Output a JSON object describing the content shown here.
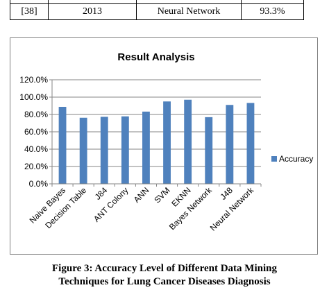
{
  "table": {
    "rows": [
      {
        "ref": "",
        "year": "",
        "technique": "",
        "accuracy": ""
      },
      {
        "ref": "[38]",
        "year": "2013",
        "technique": "Neural Network",
        "accuracy": "93.3%"
      }
    ]
  },
  "chart_data": {
    "type": "bar",
    "title": "Result Analysis",
    "categories": [
      "Naive Bayes",
      "Decision Table",
      "J84",
      "ANT Colony",
      "ANN",
      "SVM",
      "EKNN",
      "Bayes Network",
      "J48",
      "Neural Network"
    ],
    "series": [
      {
        "name": "Accuracy",
        "color": "#4f81bd",
        "values": [
          88.8,
          76.2,
          77.3,
          77.8,
          83.3,
          95.0,
          97.0,
          76.9,
          91.0,
          93.3
        ]
      }
    ],
    "ylim": [
      0,
      120
    ],
    "yticks": [
      "0.0%",
      "20.0%",
      "40.0%",
      "60.0%",
      "80.0%",
      "100.0%",
      "120.0%"
    ],
    "ytick_values": [
      0,
      20,
      40,
      60,
      80,
      100,
      120
    ],
    "xlabel": "",
    "ylabel": "",
    "grid": true,
    "legend_position": "right"
  },
  "caption": {
    "line1": "Figure 3: Accuracy Level of Different Data Mining",
    "line2": "Techniques for Lung Cancer Diseases Diagnosis"
  }
}
